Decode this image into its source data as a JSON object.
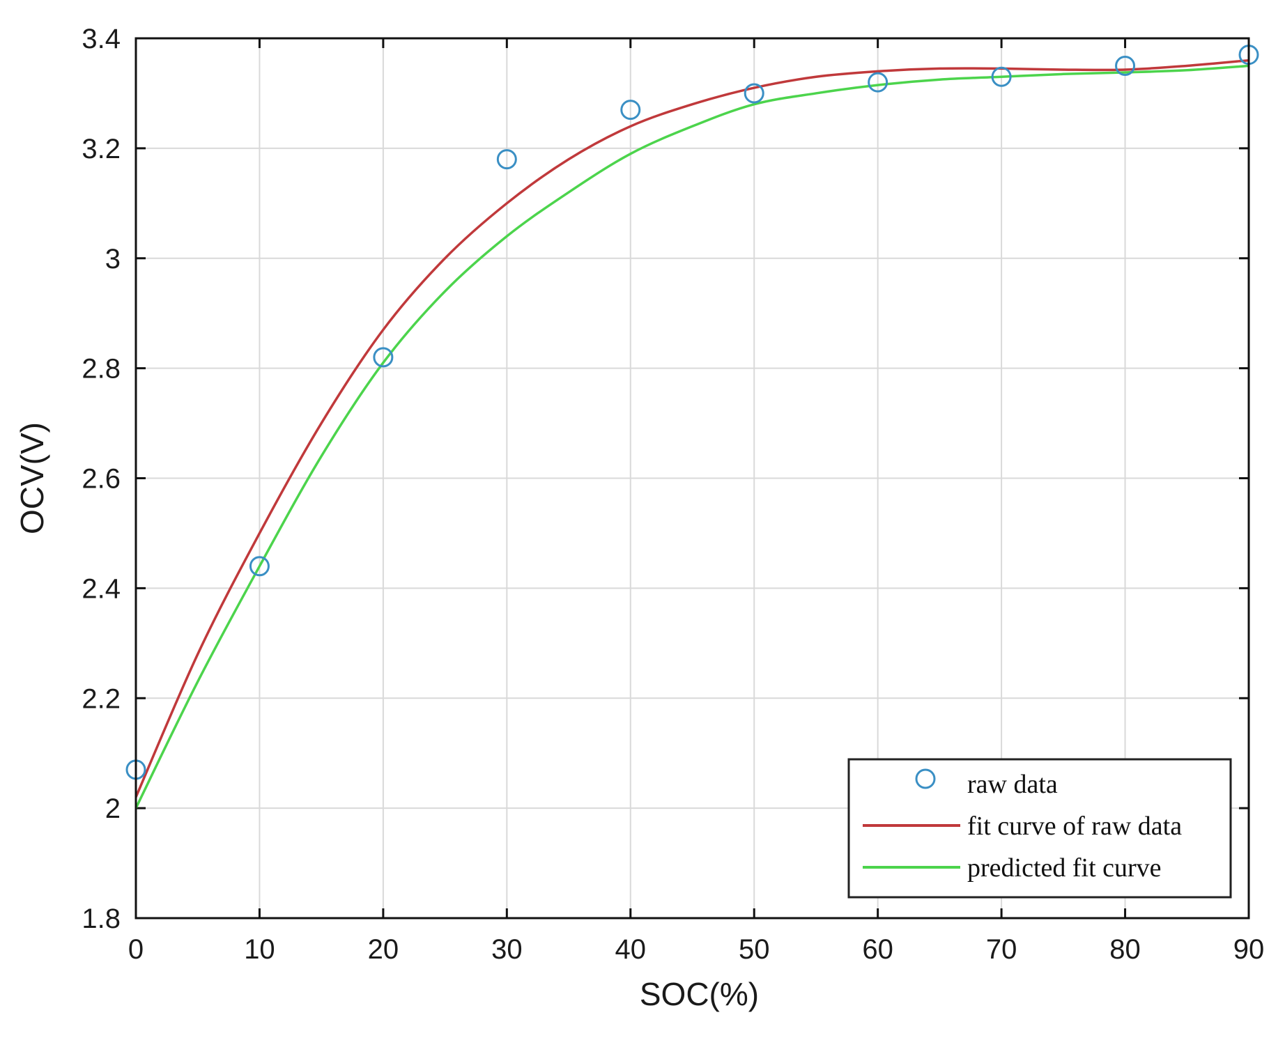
{
  "chart_data": {
    "type": "line",
    "title": "",
    "xlabel": "SOC(%)",
    "ylabel": "OCV(V)",
    "xlim": [
      0,
      90
    ],
    "ylim": [
      1.8,
      3.4
    ],
    "xticks": [
      "0",
      "10",
      "20",
      "30",
      "40",
      "50",
      "60",
      "70",
      "80",
      "90"
    ],
    "yticks": [
      "1.8",
      "2",
      "2.2",
      "2.4",
      "2.6",
      "2.8",
      "3",
      "3.2",
      "3.4"
    ],
    "xtick_values": [
      0,
      10,
      20,
      30,
      40,
      50,
      60,
      70,
      80,
      90
    ],
    "ytick_values": [
      1.8,
      2.0,
      2.2,
      2.4,
      2.6,
      2.8,
      3.0,
      3.2,
      3.4
    ],
    "grid": true,
    "legend_position": "bottom-right",
    "series": [
      {
        "name": "raw data",
        "kind": "scatter",
        "marker": "circle-open",
        "color": "#3a8fc4",
        "x": [
          0,
          10,
          20,
          30,
          40,
          50,
          60,
          70,
          80,
          90
        ],
        "y": [
          2.07,
          2.44,
          2.82,
          3.18,
          3.27,
          3.3,
          3.32,
          3.33,
          3.35,
          3.37
        ]
      },
      {
        "name": "fit curve of raw data",
        "kind": "line",
        "color": "#c0393b",
        "x": [
          0,
          5,
          10,
          15,
          20,
          25,
          30,
          35,
          40,
          45,
          50,
          55,
          60,
          65,
          70,
          75,
          80,
          85,
          90
        ],
        "y": [
          2.02,
          2.28,
          2.5,
          2.7,
          2.87,
          3.0,
          3.1,
          3.18,
          3.24,
          3.28,
          3.31,
          3.33,
          3.34,
          3.345,
          3.345,
          3.343,
          3.343,
          3.35,
          3.36
        ]
      },
      {
        "name": "predicted fit curve",
        "kind": "line",
        "color": "#4cd44c",
        "x": [
          0,
          5,
          10,
          15,
          20,
          25,
          30,
          35,
          40,
          45,
          50,
          55,
          60,
          65,
          70,
          75,
          80,
          85,
          90
        ],
        "y": [
          2.0,
          2.23,
          2.44,
          2.64,
          2.81,
          2.94,
          3.04,
          3.12,
          3.19,
          3.24,
          3.28,
          3.3,
          3.315,
          3.325,
          3.33,
          3.335,
          3.338,
          3.342,
          3.35
        ]
      }
    ]
  }
}
